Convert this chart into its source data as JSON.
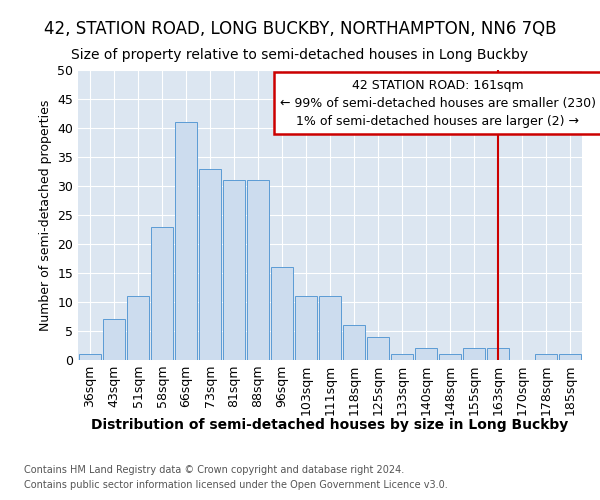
{
  "title": "42, STATION ROAD, LONG BUCKBY, NORTHAMPTON, NN6 7QB",
  "subtitle": "Size of property relative to semi-detached houses in Long Buckby",
  "xlabel": "Distribution of semi-detached houses by size in Long Buckby",
  "ylabel": "Number of semi-detached properties",
  "footnote1": "Contains HM Land Registry data © Crown copyright and database right 2024.",
  "footnote2": "Contains public sector information licensed under the Open Government Licence v3.0.",
  "categories": [
    "36sqm",
    "43sqm",
    "51sqm",
    "58sqm",
    "66sqm",
    "73sqm",
    "81sqm",
    "88sqm",
    "96sqm",
    "103sqm",
    "111sqm",
    "118sqm",
    "125sqm",
    "133sqm",
    "140sqm",
    "148sqm",
    "155sqm",
    "163sqm",
    "170sqm",
    "178sqm",
    "185sqm"
  ],
  "values": [
    1,
    7,
    11,
    23,
    41,
    33,
    31,
    31,
    16,
    11,
    11,
    6,
    4,
    1,
    2,
    1,
    2,
    2,
    0,
    1,
    1
  ],
  "bar_color": "#ccdcee",
  "bar_edge_color": "#5b9bd5",
  "bg_color": "#ffffff",
  "plot_bg_color": "#dce6f1",
  "grid_color": "#ffffff",
  "vline_x_index": 17,
  "vline_label": "42 STATION ROAD: 161sqm",
  "vline_smaller_pct": "99%",
  "vline_smaller_n": 230,
  "vline_larger_pct": "1%",
  "vline_larger_n": 2,
  "ylim": [
    0,
    50
  ],
  "yticks": [
    0,
    5,
    10,
    15,
    20,
    25,
    30,
    35,
    40,
    45,
    50
  ],
  "annotation_box_color": "#cc0000",
  "vline_color": "#cc0000",
  "title_fontsize": 12,
  "subtitle_fontsize": 10,
  "xlabel_fontsize": 10,
  "ylabel_fontsize": 9,
  "tick_fontsize": 9,
  "annotation_fontsize": 9,
  "footnote_fontsize": 7
}
